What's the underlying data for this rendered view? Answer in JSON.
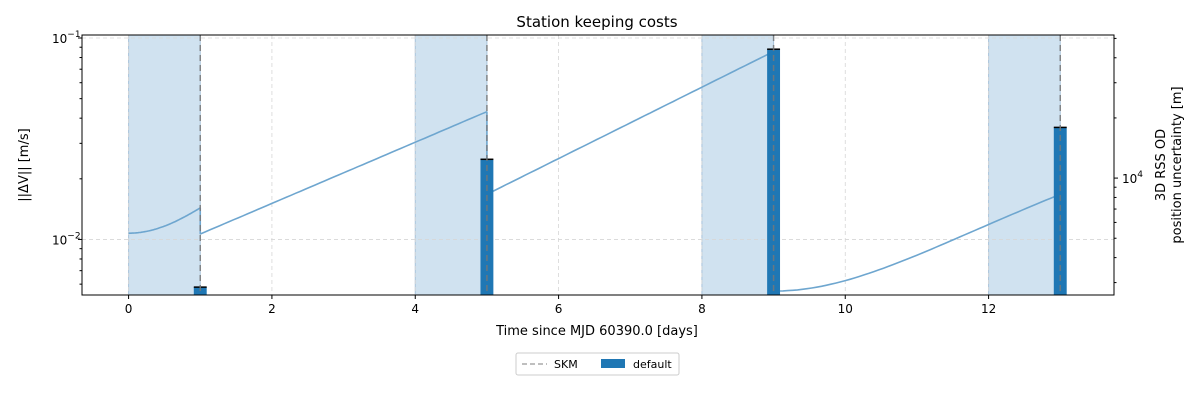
{
  "chart_data": {
    "type": "bar",
    "title": "Station keeping costs",
    "xlabel": "Time since MJD 60390.0 [days]",
    "ylabel_left": "||ΔV|| [m/s]",
    "ylabel_right": [
      "3D RSS OD",
      "position uncertainty [m]"
    ],
    "xlim": [
      -0.65,
      13.75
    ],
    "x_ticks": [
      0,
      2,
      4,
      6,
      8,
      10,
      12
    ],
    "y_left": {
      "scale": "log",
      "ylim": [
        0.0053,
        0.1035
      ],
      "ticks": [
        {
          "value": 0.01,
          "base": "10",
          "exp": "−2"
        },
        {
          "value": 0.1,
          "base": "10",
          "exp": "−1"
        }
      ]
    },
    "y_right": {
      "scale": "log",
      "ylim": [
        2600,
        52000
      ],
      "ticks": [
        {
          "value": 10000,
          "base": "10",
          "exp": "4"
        }
      ]
    },
    "grid": true,
    "legend": {
      "placement": "bottom-center",
      "entries": [
        {
          "label": "SKM",
          "style": "dashed-line",
          "color": "#aaaaaa"
        },
        {
          "label": "default",
          "style": "bar",
          "color": "#1f77b4"
        }
      ]
    },
    "shaded_intervals": [
      [
        0,
        1
      ],
      [
        4,
        5
      ],
      [
        8,
        9
      ],
      [
        12,
        13
      ]
    ],
    "skm_times": [
      1,
      5,
      9,
      13
    ],
    "series": [
      {
        "name": "default",
        "axis": "left",
        "x": [
          1,
          5,
          9,
          13
        ],
        "values": [
          0.0058,
          0.025,
          0.088,
          0.036
        ]
      }
    ],
    "uncertainty_segments": [
      {
        "x_start": 0,
        "x_end": 1,
        "t_start": 0,
        "y_start": 5300,
        "y_end": 7100,
        "shape": "quadratic"
      },
      {
        "x_start": 1,
        "x_end": 5,
        "t_start": 1,
        "y_start": 5250,
        "y_end": 21500,
        "shape": "exponential"
      },
      {
        "x_start": 5,
        "x_end": 9,
        "t_start": 5,
        "y_start": 8300,
        "y_end": 43000,
        "shape": "exponential"
      },
      {
        "x_start": 9,
        "x_end": 13,
        "t_start": 9,
        "y_start": 2720,
        "y_end": 8300,
        "shape": "quadratic"
      }
    ],
    "colors": {
      "bar": "#1f77b4",
      "line": "#6ea6cf",
      "shade": "#d0e2f0",
      "skm": "#777777",
      "grid": "#d6d6d6"
    }
  }
}
